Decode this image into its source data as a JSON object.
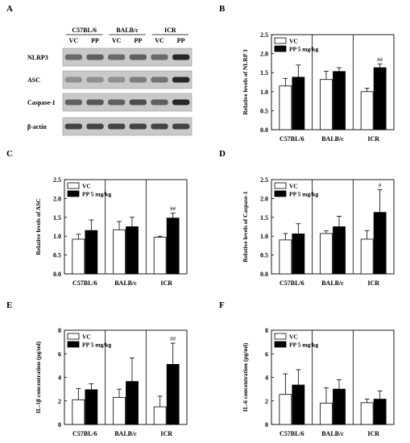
{
  "figure": {
    "panel_letters": [
      "A",
      "B",
      "C",
      "D",
      "E",
      "F"
    ]
  },
  "blot": {
    "strain_labels": [
      "C57BL/6",
      "BALB/c",
      "ICR"
    ],
    "lane_labels": [
      "VC",
      "PP",
      "VC",
      "PP",
      "VC",
      "PP"
    ],
    "row_labels": [
      "NLRP3",
      "ASC",
      "Caspase-1",
      "β-actin"
    ],
    "band_intensity": [
      [
        0.55,
        0.6,
        0.55,
        0.6,
        0.55,
        0.9
      ],
      [
        0.35,
        0.35,
        0.35,
        0.45,
        0.5,
        0.9
      ],
      [
        0.6,
        0.65,
        0.6,
        0.7,
        0.6,
        0.9
      ],
      [
        0.75,
        0.75,
        0.75,
        0.75,
        0.75,
        0.75
      ]
    ]
  },
  "chart_data": [
    {
      "panel": "B",
      "type": "bar",
      "categories": [
        "C57BL/6",
        "BALB/c",
        "ICR"
      ],
      "series": [
        {
          "name": "VC",
          "values": [
            1.15,
            1.32,
            1.0
          ],
          "errors": [
            0.2,
            0.22,
            0.09
          ]
        },
        {
          "name": "PP 5 mg/kg",
          "values": [
            1.38,
            1.53,
            1.63
          ],
          "errors": [
            0.32,
            0.1,
            0.1
          ]
        }
      ],
      "annotations": [
        {
          "category": 2,
          "series": 1,
          "text": "##"
        }
      ],
      "ylabel": "Relative levels of NLRP 3",
      "ylim": [
        0,
        2.5
      ],
      "yticks": [
        "0.0",
        "0.5",
        "1.0",
        "1.5",
        "2.0",
        "2.5"
      ],
      "legend": "top-left"
    },
    {
      "panel": "C",
      "type": "bar",
      "categories": [
        "C57BL/6",
        "BALB/c",
        "ICR"
      ],
      "series": [
        {
          "name": "VC",
          "values": [
            0.92,
            1.17,
            0.97
          ],
          "errors": [
            0.13,
            0.22,
            0.03
          ]
        },
        {
          "name": "PP 5 mg/kg",
          "values": [
            1.15,
            1.25,
            1.48
          ],
          "errors": [
            0.28,
            0.25,
            0.13
          ]
        }
      ],
      "annotations": [
        {
          "category": 2,
          "series": 1,
          "text": "##"
        }
      ],
      "ylabel": "Relative levels of ASC",
      "ylim": [
        0,
        2.5
      ],
      "yticks": [
        "0.0",
        "0.5",
        "1.0",
        "1.5",
        "2.0",
        "2.5"
      ],
      "legend": "top-left"
    },
    {
      "panel": "D",
      "type": "bar",
      "categories": [
        "C57BL/6",
        "BALB/c",
        "ICR"
      ],
      "series": [
        {
          "name": "VC",
          "values": [
            0.9,
            1.07,
            0.92
          ],
          "errors": [
            0.17,
            0.07,
            0.23
          ]
        },
        {
          "name": "PP 5 mg/kg",
          "values": [
            1.06,
            1.25,
            1.63
          ],
          "errors": [
            0.27,
            0.28,
            0.6
          ]
        }
      ],
      "annotations": [
        {
          "category": 2,
          "series": 1,
          "text": "#"
        }
      ],
      "ylabel": "Relative levels of Caspase-1",
      "ylim": [
        0,
        2.5
      ],
      "yticks": [
        "0.0",
        "0.5",
        "1.0",
        "1.5",
        "2.0",
        "2.5"
      ],
      "legend": "top-left"
    },
    {
      "panel": "E",
      "type": "bar",
      "categories": [
        "C57BL/6",
        "BALB/c",
        "ICR"
      ],
      "series": [
        {
          "name": "VC",
          "values": [
            2.1,
            2.3,
            1.5
          ],
          "errors": [
            0.95,
            0.7,
            0.9
          ]
        },
        {
          "name": "PP 5 mg/kg",
          "values": [
            2.95,
            3.65,
            5.1
          ],
          "errors": [
            0.5,
            2.0,
            1.8
          ]
        }
      ],
      "annotations": [
        {
          "category": 2,
          "series": 1,
          "text": "##"
        }
      ],
      "ylabel": "IL-1β concentration (pg/ml)",
      "ylim": [
        0,
        8
      ],
      "yticks": [
        "0",
        "2",
        "4",
        "6",
        "8"
      ],
      "legend": "top-left"
    },
    {
      "panel": "F",
      "type": "bar",
      "categories": [
        "C57BL/6",
        "BALB/c",
        "ICR"
      ],
      "series": [
        {
          "name": "VC",
          "values": [
            2.55,
            1.8,
            1.85
          ],
          "errors": [
            1.75,
            1.3,
            0.3
          ]
        },
        {
          "name": "PP 5 mg/kg",
          "values": [
            3.35,
            3.0,
            2.15
          ],
          "errors": [
            1.3,
            0.8,
            0.7
          ]
        }
      ],
      "annotations": [],
      "ylabel": "IL-6 concentration (pg/ml)",
      "ylim": [
        0,
        8
      ],
      "yticks": [
        "0",
        "2",
        "4",
        "6",
        "8"
      ],
      "legend": "top-left"
    }
  ]
}
